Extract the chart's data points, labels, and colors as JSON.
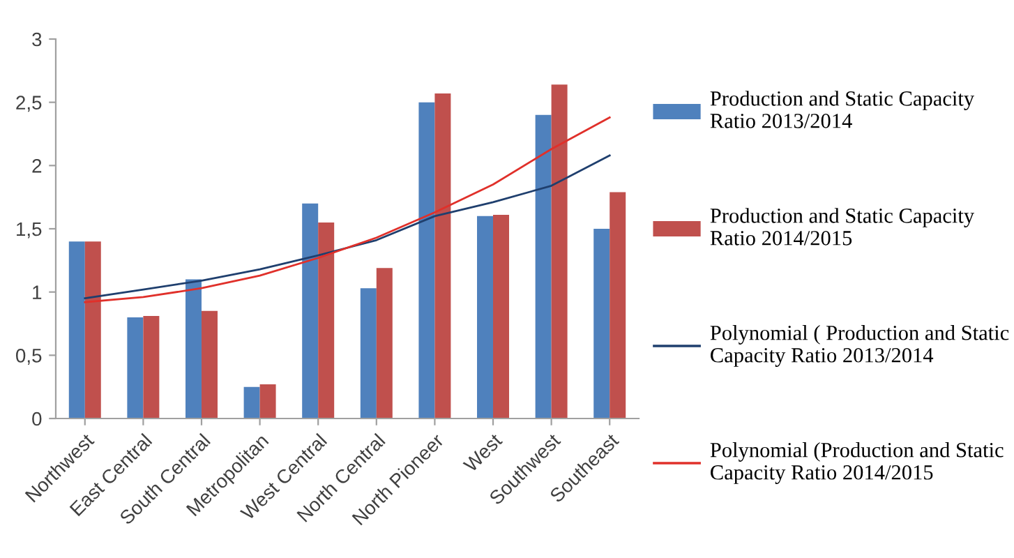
{
  "chart_data": {
    "type": "bar",
    "categories": [
      "Northwest",
      "East Central",
      "South Central",
      "Metropolitan",
      "West Central",
      "North Central",
      "North Pioneer",
      "West",
      "Southwest",
      "Southeast"
    ],
    "series": [
      {
        "name": "Production and Static Capacity Ratio 2013/2014",
        "color": "#4f81bd",
        "values": [
          1.4,
          0.8,
          1.1,
          0.25,
          1.7,
          1.03,
          2.5,
          1.6,
          2.4,
          1.5
        ]
      },
      {
        "name": "Production and Static Capacity Ratio 2014/2015",
        "color": "#c0504d",
        "values": [
          1.4,
          0.81,
          0.85,
          0.27,
          1.55,
          1.19,
          2.57,
          1.61,
          2.64,
          1.79
        ]
      },
      {
        "name": "Polynomial ( Production and Static Capacity Ratio 2013/2014",
        "type": "line",
        "color": "#1f3f6e",
        "values": [
          0.95,
          1.02,
          1.09,
          1.18,
          1.29,
          1.41,
          1.6,
          1.71,
          1.84,
          2.08
        ]
      },
      {
        "name": "Polynomial (Production and Static Capacity Ratio 2014/2015",
        "type": "line",
        "color": "#e0302a",
        "values": [
          0.92,
          0.96,
          1.03,
          1.13,
          1.27,
          1.43,
          1.63,
          1.85,
          2.13,
          2.38
        ]
      }
    ],
    "ylim": [
      0,
      3
    ],
    "yticks": [
      0,
      {
        "value": 0.5,
        "label": "0,5"
      },
      1,
      {
        "value": 1.5,
        "label": "1,5"
      },
      2,
      {
        "value": 2.5,
        "label": "2,5"
      },
      3
    ],
    "legend": "right",
    "grid": false
  }
}
